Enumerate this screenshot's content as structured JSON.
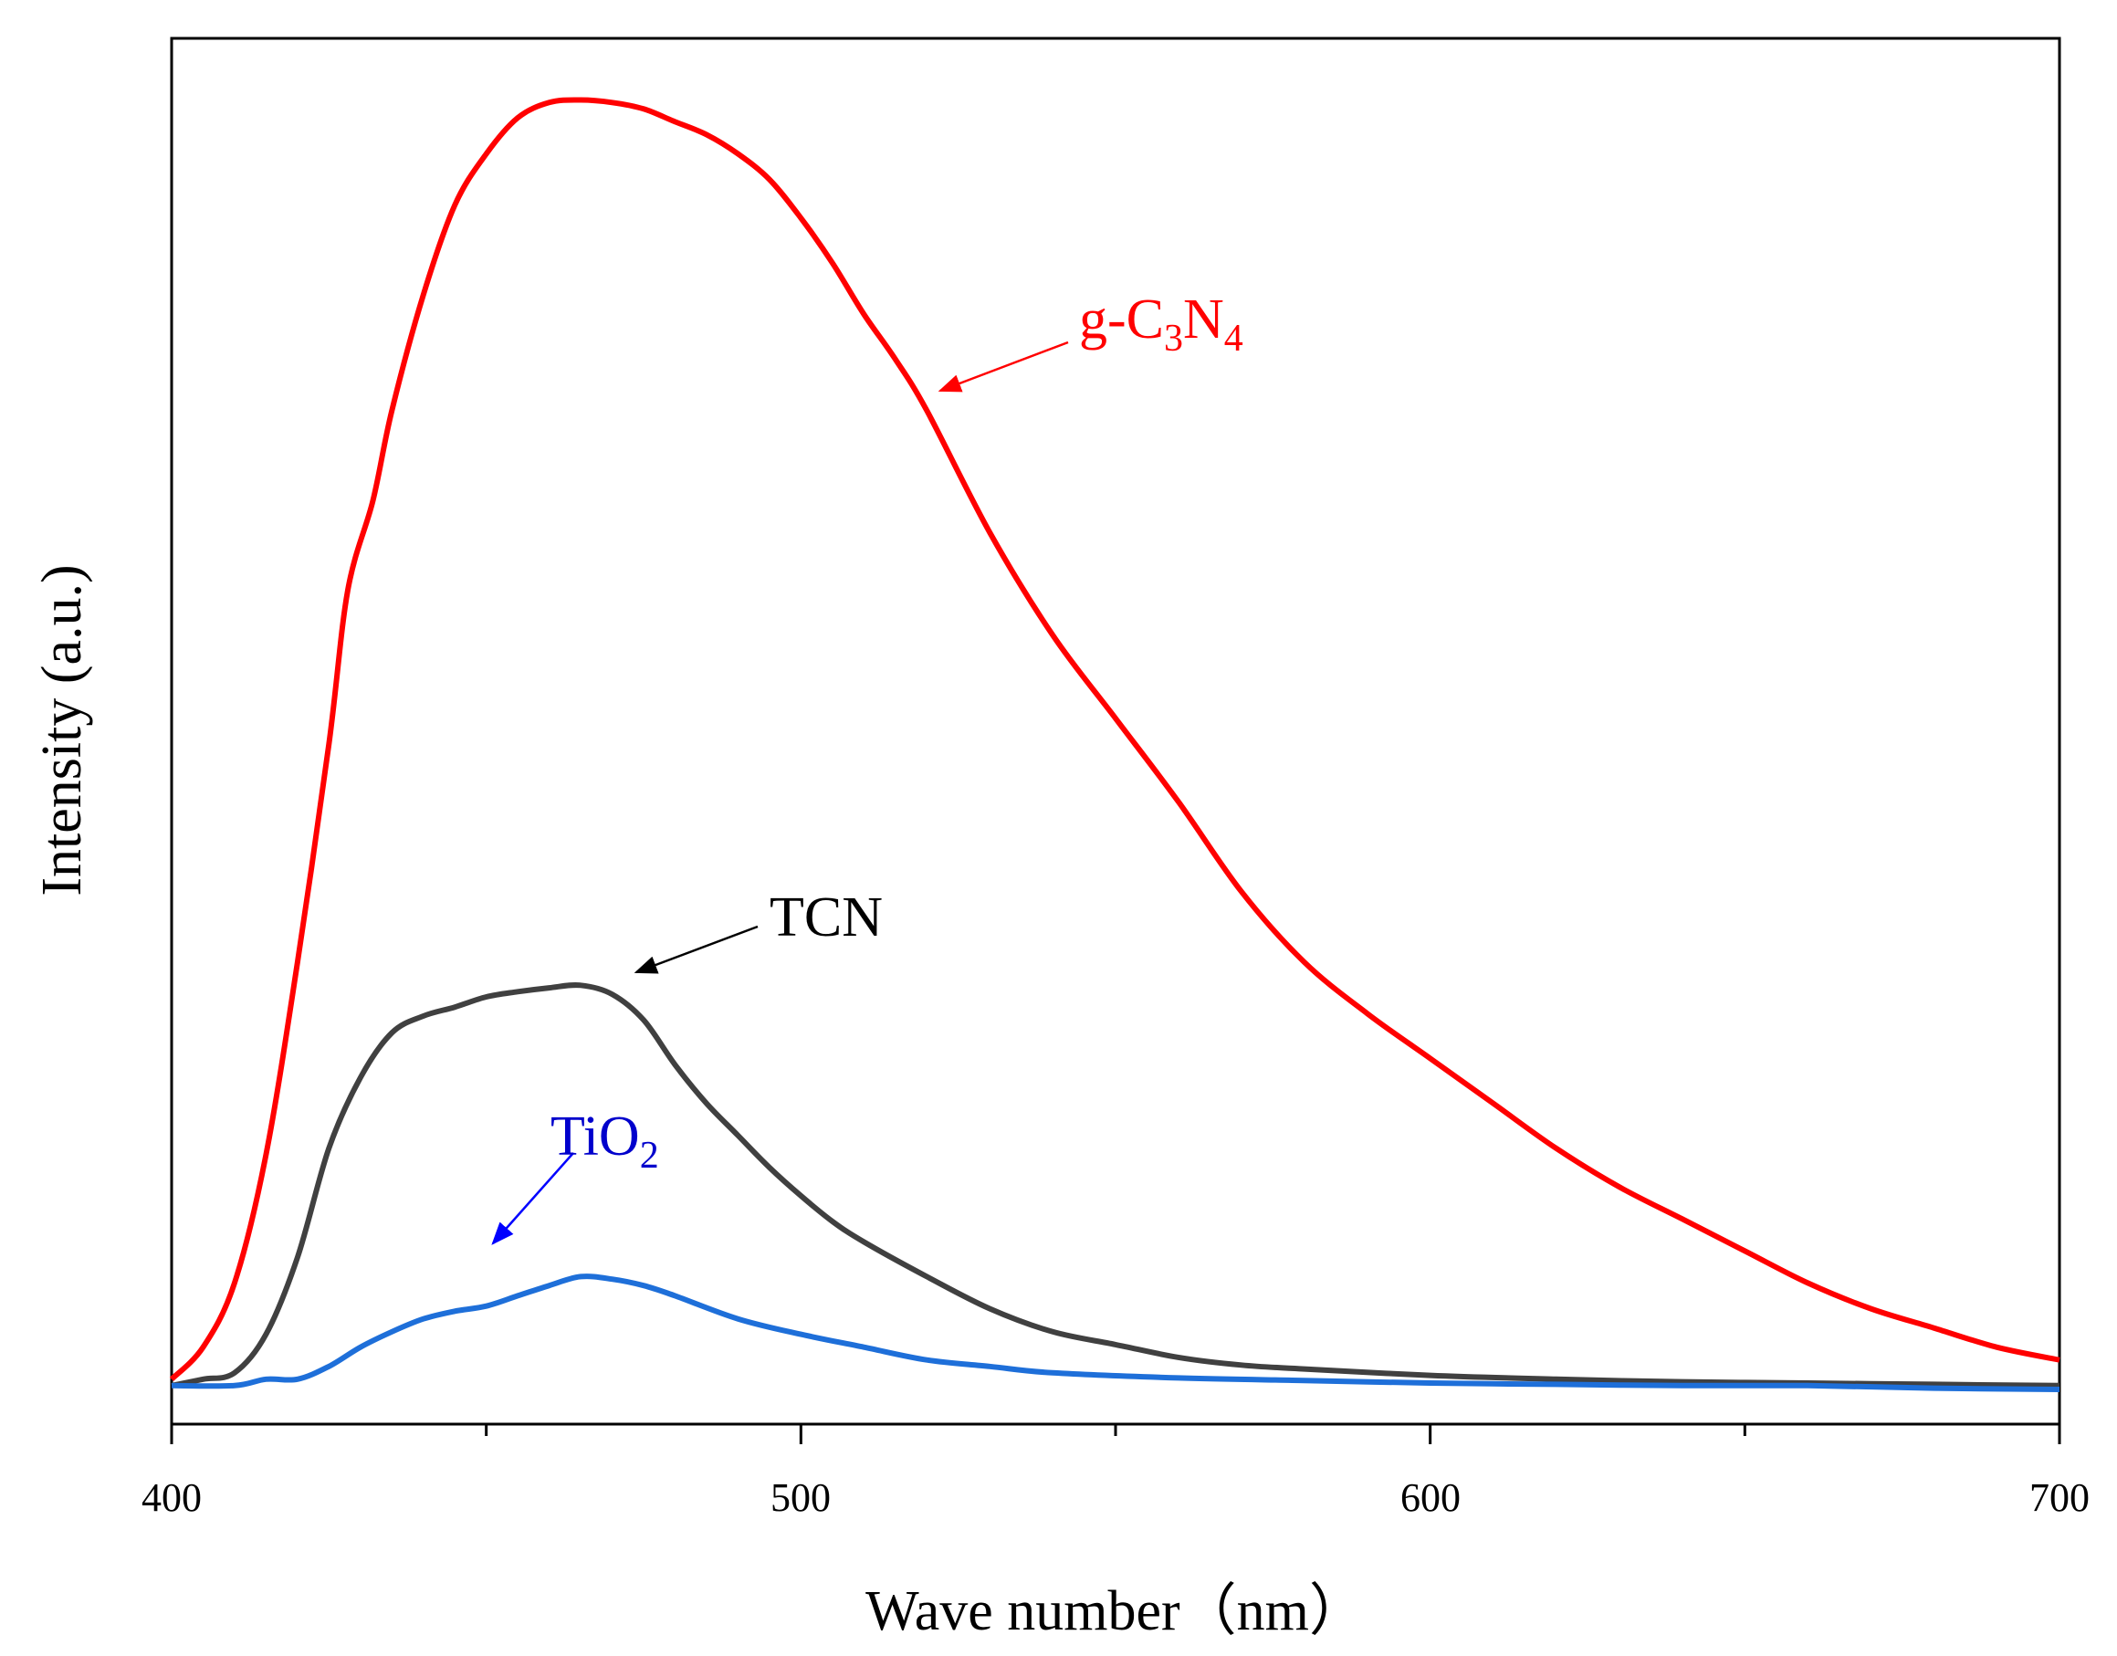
{
  "chart_data": {
    "type": "line",
    "title": "",
    "xlabel": "Wave number（nm）",
    "ylabel": "Intensity (a.u.)",
    "xlim": [
      400,
      700
    ],
    "ylim": [
      -0.3,
      10.5
    ],
    "xticks": [
      400,
      500,
      600,
      700
    ],
    "xtick_labels": [
      "400",
      "500",
      "600",
      "700"
    ],
    "y_tick_labels_shown": false,
    "grid": false,
    "legend": "none (inline annotations)",
    "series": [
      {
        "name": "g-C3N4",
        "color": "#ff0000",
        "x": [
          400,
          405,
          410,
          415,
          420,
          425,
          428,
          432,
          435,
          440,
          445,
          450,
          455,
          460,
          465,
          470,
          475,
          480,
          485,
          490,
          495,
          500,
          505,
          510,
          515,
          520,
          530,
          540,
          550,
          560,
          570,
          580,
          590,
          600,
          610,
          620,
          630,
          640,
          650,
          660,
          670,
          680,
          690,
          700
        ],
        "y": [
          0.05,
          0.3,
          0.8,
          1.8,
          3.3,
          5.0,
          6.2,
          6.9,
          7.6,
          8.5,
          9.2,
          9.6,
          9.88,
          10.0,
          10.02,
          10.0,
          9.95,
          9.85,
          9.75,
          9.6,
          9.4,
          9.1,
          8.75,
          8.35,
          8.0,
          7.6,
          6.65,
          5.85,
          5.2,
          4.55,
          3.85,
          3.3,
          2.9,
          2.55,
          2.2,
          1.85,
          1.55,
          1.3,
          1.05,
          0.8,
          0.6,
          0.45,
          0.3,
          0.2
        ]
      },
      {
        "name": "TCN",
        "color": "#404040",
        "x": [
          400,
          405,
          410,
          415,
          420,
          425,
          430,
          435,
          440,
          445,
          450,
          455,
          460,
          465,
          470,
          475,
          480,
          485,
          490,
          495,
          500,
          505,
          510,
          520,
          530,
          540,
          550,
          560,
          570,
          580,
          600,
          620,
          640,
          660,
          680,
          700
        ],
        "y": [
          0.0,
          0.05,
          0.1,
          0.4,
          1.0,
          1.85,
          2.4,
          2.75,
          2.88,
          2.95,
          3.03,
          3.07,
          3.1,
          3.12,
          3.05,
          2.85,
          2.5,
          2.2,
          1.95,
          1.7,
          1.48,
          1.28,
          1.12,
          0.85,
          0.6,
          0.42,
          0.32,
          0.22,
          0.16,
          0.13,
          0.08,
          0.05,
          0.03,
          0.02,
          0.01,
          0.0
        ]
      },
      {
        "name": "TiO2",
        "color": "#1e6fd9",
        "x": [
          400,
          410,
          415,
          420,
          425,
          430,
          435,
          440,
          445,
          450,
          455,
          460,
          465,
          470,
          475,
          480,
          490,
          500,
          510,
          520,
          530,
          540,
          560,
          580,
          600,
          620,
          640,
          660,
          680,
          700
        ],
        "y": [
          0.0,
          0.0,
          0.05,
          0.05,
          0.15,
          0.3,
          0.42,
          0.52,
          0.58,
          0.62,
          0.7,
          0.78,
          0.85,
          0.83,
          0.78,
          0.7,
          0.52,
          0.4,
          0.3,
          0.2,
          0.15,
          0.1,
          0.06,
          0.04,
          0.02,
          0.01,
          0.0,
          0.0,
          -0.02,
          -0.03
        ]
      }
    ],
    "annotations": [
      {
        "text_main": "g-C",
        "sub1": "3",
        "mid": "N",
        "sub2": "4",
        "color": "#ff0000"
      },
      {
        "text_main": "TCN",
        "color": "#000000"
      },
      {
        "text_main": "TiO",
        "sub1": "2",
        "color": "#0000cc"
      }
    ]
  }
}
